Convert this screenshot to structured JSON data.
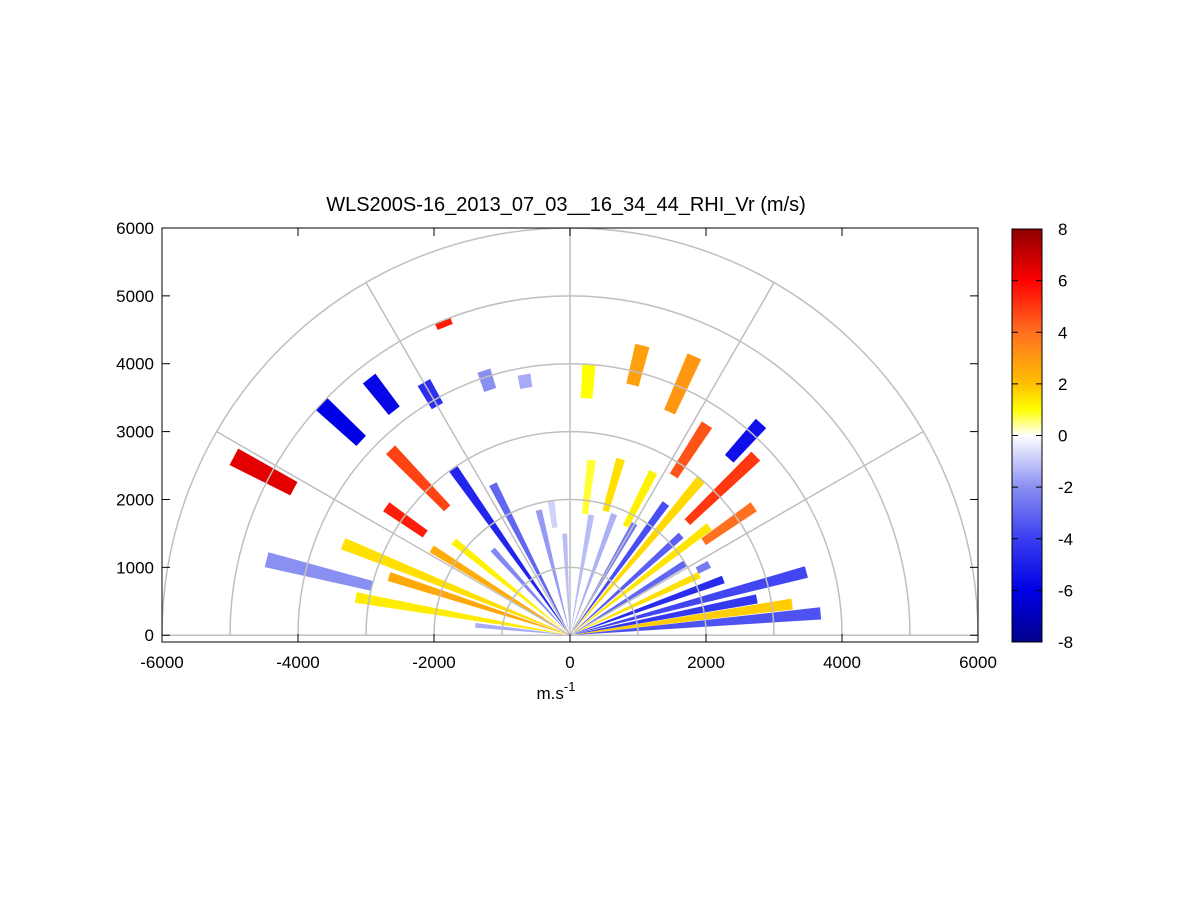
{
  "chart_data": {
    "type": "heatmap",
    "projection": "polar-rhi-half-plane",
    "title": "WLS200S-16_2013_07_03__16_34_44_RHI_Vr (m/s)",
    "xlabel": "m.s",
    "xlabel_superscript": "-1",
    "ylabel": "",
    "xlim": [
      -6000,
      6000
    ],
    "ylim": [
      -100,
      6000
    ],
    "x_ticks": [
      "-6000",
      "-4000",
      "-2000",
      "0",
      "2000",
      "4000",
      "6000"
    ],
    "y_ticks": [
      "0",
      "1000",
      "2000",
      "3000",
      "4000",
      "5000",
      "6000"
    ],
    "grid": true,
    "polar_grid": {
      "range_rings_m": [
        1000,
        2000,
        3000,
        4000,
        5000,
        6000
      ],
      "spokes_deg": [
        0,
        30,
        60,
        90,
        120,
        150,
        180
      ]
    },
    "colorbar": {
      "placement": "right",
      "min": -8,
      "max": 8,
      "ticks": [
        "8",
        "6",
        "4",
        "2",
        "0",
        "-2",
        "-4",
        "-6",
        "-8"
      ],
      "colormap": "blue-white-red",
      "stops": [
        {
          "v": -8,
          "color": "#00008c"
        },
        {
          "v": -6,
          "color": "#0000e6"
        },
        {
          "v": -4,
          "color": "#3a3ef0"
        },
        {
          "v": -2,
          "color": "#8a8ff2"
        },
        {
          "v": 0,
          "color": "#ffffff"
        },
        {
          "v": 1,
          "color": "#ffff00"
        },
        {
          "v": 2,
          "color": "#ffc000"
        },
        {
          "v": 4,
          "color": "#ff7020"
        },
        {
          "v": 6,
          "color": "#ff0000"
        },
        {
          "v": 8,
          "color": "#8c0000"
        }
      ]
    },
    "rays": [
      {
        "az": 5,
        "r0": 80,
        "r1": 3700,
        "vr": -3.5
      },
      {
        "az": 8,
        "r0": 80,
        "r1": 3300,
        "vr": 1.8
      },
      {
        "az": 11,
        "r0": 80,
        "r1": 2800,
        "vr": -4.2
      },
      {
        "az": 15,
        "r0": 80,
        "r1": 3600,
        "vr": -3.8
      },
      {
        "az": 20,
        "r0": 80,
        "r1": 2400,
        "vr": -4.6
      },
      {
        "az": 25,
        "r0": 80,
        "r1": 2100,
        "vr": 1.5
      },
      {
        "az": 27,
        "r0": 2100,
        "r1": 2300,
        "vr": -2.5
      },
      {
        "az": 32,
        "r0": 80,
        "r1": 2000,
        "vr": -3.0
      },
      {
        "az": 35,
        "r0": 2400,
        "r1": 3300,
        "vr": 4.0
      },
      {
        "az": 38,
        "r0": 80,
        "r1": 2600,
        "vr": 1.4
      },
      {
        "az": 42,
        "r0": 80,
        "r1": 2200,
        "vr": -3.2
      },
      {
        "az": 44,
        "r0": 2400,
        "r1": 3800,
        "vr": 5.0
      },
      {
        "az": 48,
        "r0": 3500,
        "r1": 4200,
        "vr": -5.5
      },
      {
        "az": 50,
        "r0": 80,
        "r1": 3000,
        "vr": 1.6
      },
      {
        "az": 54,
        "r0": 80,
        "r1": 2400,
        "vr": -3.6
      },
      {
        "az": 57,
        "r0": 2800,
        "r1": 3700,
        "vr": 4.5
      },
      {
        "az": 60,
        "r0": 80,
        "r1": 1900,
        "vr": -2.6
      },
      {
        "az": 63,
        "r0": 1800,
        "r1": 2700,
        "vr": 1.2
      },
      {
        "az": 66,
        "r0": 3600,
        "r1": 4500,
        "vr": 3.0
      },
      {
        "az": 70,
        "r0": 80,
        "r1": 1900,
        "vr": -1.4
      },
      {
        "az": 74,
        "r0": 1900,
        "r1": 2700,
        "vr": 1.5
      },
      {
        "az": 76,
        "r0": 3800,
        "r1": 4400,
        "vr": 2.8
      },
      {
        "az": 80,
        "r0": 80,
        "r1": 1800,
        "vr": -1.2
      },
      {
        "az": 83,
        "r0": 1800,
        "r1": 2600,
        "vr": 0.8
      },
      {
        "az": 86,
        "r0": 3500,
        "r1": 4000,
        "vr": 1.0
      },
      {
        "az": 93,
        "r0": 80,
        "r1": 1500,
        "vr": -1.2
      },
      {
        "az": 98,
        "r0": 1600,
        "r1": 2000,
        "vr": -0.8
      },
      {
        "az": 100,
        "r0": 3700,
        "r1": 3900,
        "vr": -1.5
      },
      {
        "az": 104,
        "r0": 80,
        "r1": 1900,
        "vr": -1.8
      },
      {
        "az": 108,
        "r0": 3800,
        "r1": 4100,
        "vr": -2.0
      },
      {
        "az": 112,
        "r0": 4900,
        "r1": 5000,
        "vr": 5.5
      },
      {
        "az": 117,
        "r0": 80,
        "r1": 2500,
        "vr": -3.0
      },
      {
        "az": 120,
        "r0": 3900,
        "r1": 4300,
        "vr": -4.5
      },
      {
        "az": 125,
        "r0": 80,
        "r1": 3000,
        "vr": -4.8
      },
      {
        "az": 128,
        "r0": 4200,
        "r1": 4800,
        "vr": -5.8
      },
      {
        "az": 132,
        "r0": 80,
        "r1": 1700,
        "vr": -2.2
      },
      {
        "az": 134,
        "r0": 2600,
        "r1": 3800,
        "vr": 4.8
      },
      {
        "az": 137,
        "r0": 4200,
        "r1": 5000,
        "vr": -6.0
      },
      {
        "az": 141,
        "r0": 80,
        "r1": 2200,
        "vr": 1.2
      },
      {
        "az": 145,
        "r0": 2600,
        "r1": 3300,
        "vr": 5.5
      },
      {
        "az": 148,
        "r0": 80,
        "r1": 2400,
        "vr": 2.5
      },
      {
        "az": 152,
        "r0": 4600,
        "r1": 5600,
        "vr": 6.5
      },
      {
        "az": 158,
        "r0": 80,
        "r1": 3600,
        "vr": 1.5
      },
      {
        "az": 162,
        "r0": 80,
        "r1": 2800,
        "vr": 2.6
      },
      {
        "az": 166,
        "r0": 3000,
        "r1": 4600,
        "vr": -2.0
      },
      {
        "az": 170,
        "r0": 80,
        "r1": 3200,
        "vr": 1.3
      },
      {
        "az": 174,
        "r0": 80,
        "r1": 1400,
        "vr": -1.5
      }
    ]
  }
}
